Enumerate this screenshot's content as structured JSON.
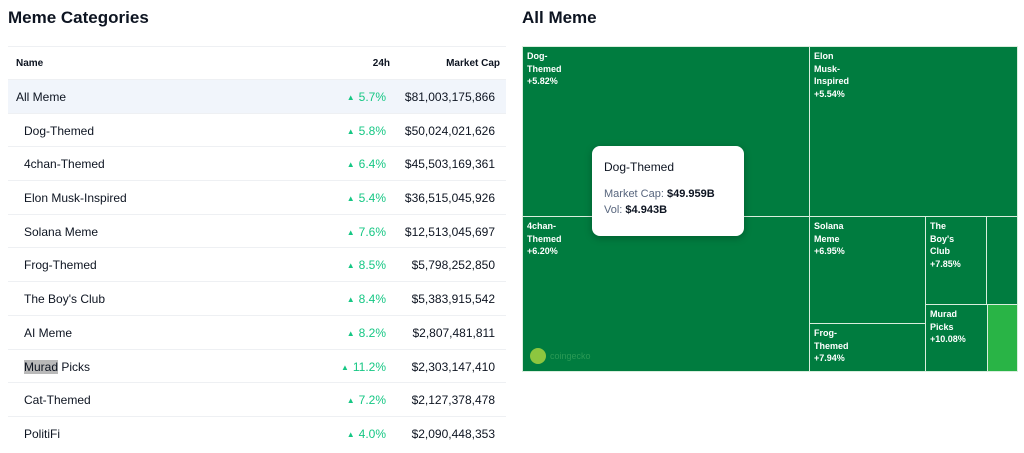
{
  "left_title": "Meme Categories",
  "right_title": "All Meme",
  "table": {
    "headers": {
      "name": "Name",
      "change": "24h",
      "cap": "Market Cap"
    },
    "rows": [
      {
        "name": "All Meme",
        "change": "5.7%",
        "cap": "$81,003,175,866"
      },
      {
        "name": "Dog-Themed",
        "change": "5.8%",
        "cap": "$50,024,021,626"
      },
      {
        "name": "4chan-Themed",
        "change": "6.4%",
        "cap": "$45,503,169,361"
      },
      {
        "name": "Elon Musk-Inspired",
        "change": "5.4%",
        "cap": "$36,515,045,926"
      },
      {
        "name": "Solana Meme",
        "change": "7.6%",
        "cap": "$12,513,045,697"
      },
      {
        "name": "Frog-Themed",
        "change": "8.5%",
        "cap": "$5,798,252,850"
      },
      {
        "name": "The Boy's Club",
        "change": "8.4%",
        "cap": "$5,383,915,542"
      },
      {
        "name": "AI Meme",
        "change": "8.2%",
        "cap": "$2,807,481,811"
      },
      {
        "name_highlight": "Murad",
        "name_rest": " Picks",
        "change": "11.2%",
        "cap": "$2,303,147,410"
      },
      {
        "name": "Cat-Themed",
        "change": "7.2%",
        "cap": "$2,127,378,478"
      },
      {
        "name": "PolitiFi",
        "change": "4.0%",
        "cap": "$2,090,448,353"
      }
    ],
    "up_arrow": "▲"
  },
  "treemap": {
    "tiles": [
      {
        "lines": [
          "Dog-",
          "Themed",
          "+5.82%"
        ]
      },
      {
        "lines": [
          "Elon",
          "Musk-",
          "Inspired",
          "+5.54%"
        ]
      },
      {
        "lines": [
          "4chan-",
          "Themed",
          "+6.20%"
        ]
      },
      {
        "lines": [
          "Solana",
          "Meme",
          "+6.95%"
        ]
      },
      {
        "lines": [
          "The",
          "Boy's",
          "Club",
          "+7.85%"
        ]
      },
      {
        "lines": [
          "Frog-",
          "Themed",
          "+7.94%"
        ]
      },
      {
        "lines": [
          "Murad",
          "Picks",
          "+10.08%"
        ]
      }
    ],
    "watermark": "coingecko"
  },
  "tooltip": {
    "title": "Dog-Themed",
    "cap_label": "Market Cap:",
    "cap_value": "$49.959B",
    "vol_label": "Vol:",
    "vol_value": "$4.943B"
  },
  "colors": {
    "up": "#16c784",
    "treemap_green": "#007c3f",
    "treemap_bright": "#29b446"
  }
}
